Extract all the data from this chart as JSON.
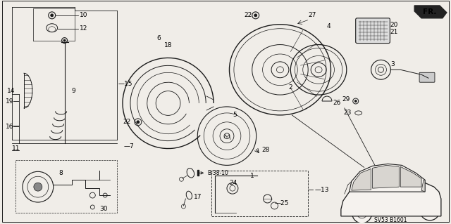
{
  "bg_color": "#f0ede8",
  "fig_width": 6.4,
  "fig_height": 3.19,
  "dpi": 100,
  "line_color": "#1a1a1a",
  "text_color": "#000000",
  "reference_code": "SV53 B1601",
  "front_label": "FR.",
  "cross_ref": "B-38-10",
  "font_size": 6.5
}
